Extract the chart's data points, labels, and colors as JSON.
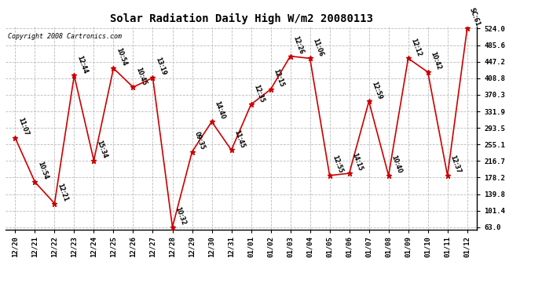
{
  "title": "Solar Radiation Daily High W/m2 20080113",
  "copyright": "Copyright 2008 Cartronics.com",
  "dates": [
    "12/20",
    "12/21",
    "12/22",
    "12/23",
    "12/24",
    "12/25",
    "12/26",
    "12/27",
    "12/28",
    "12/29",
    "12/30",
    "12/31",
    "01/01",
    "01/02",
    "01/03",
    "01/04",
    "01/05",
    "01/06",
    "01/07",
    "01/08",
    "01/09",
    "01/10",
    "01/11",
    "01/12"
  ],
  "values": [
    270,
    168,
    118,
    415,
    218,
    432,
    388,
    410,
    63,
    238,
    308,
    242,
    348,
    383,
    460,
    455,
    183,
    188,
    355,
    183,
    455,
    423,
    183,
    524
  ],
  "labels": [
    "11:07",
    "10:54",
    "12:21",
    "12:44",
    "15:34",
    "10:54",
    "10:45",
    "13:19",
    "10:32",
    "09:35",
    "14:40",
    "11:45",
    "12:35",
    "12:15",
    "12:26",
    "11:06",
    "12:55",
    "14:15",
    "12:59",
    "10:40",
    "12:12",
    "10:42",
    "12:37",
    "SC:61"
  ],
  "line_color": "#cc0000",
  "marker_color": "#cc0000",
  "bg_color": "#ffffff",
  "grid_color": "#bbbbbb",
  "ylim_min": 63.0,
  "ylim_max": 524.0,
  "yticks": [
    63.0,
    101.4,
    139.8,
    178.2,
    216.7,
    255.1,
    293.5,
    331.9,
    370.3,
    408.8,
    447.2,
    485.6,
    524.0
  ]
}
